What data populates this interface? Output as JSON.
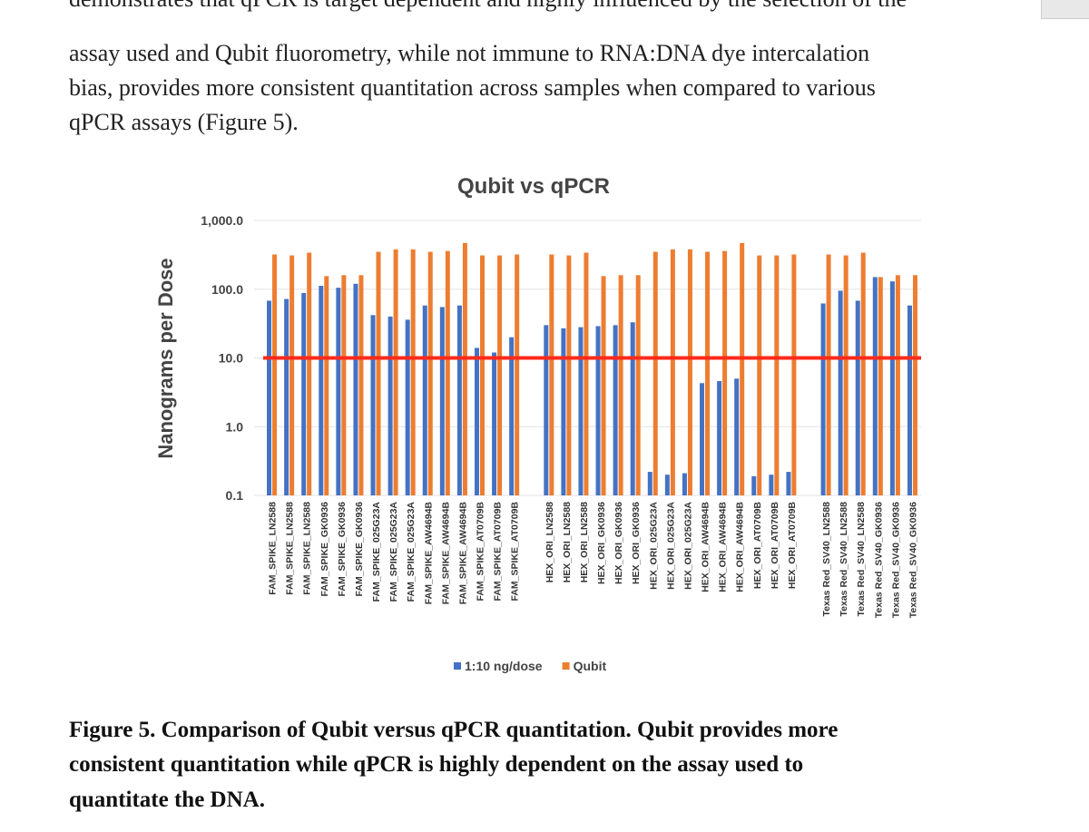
{
  "paragraph": [
    "demonstrates that qPCR is target dependent and highly influenced by the selection of the",
    "assay used and Qubit fluorometry, while not immune to RNA:DNA dye intercalation",
    "bias, provides more consistent quantitation across samples when compared to various",
    "qPCR assays (Figure 5)."
  ],
  "chart_data": {
    "type": "bar",
    "title": "Qubit vs qPCR",
    "y_label": "Nanograms per Dose",
    "log_scale": true,
    "grid": true,
    "legend": "bottom",
    "ylim": [
      0.1,
      1000
    ],
    "yticks": [
      0.1,
      {
        "value": 1,
        "label": "1.0"
      },
      {
        "value": 10,
        "label": "10.0"
      },
      {
        "value": 100,
        "label": "100.0"
      },
      {
        "value": 1000,
        "label": "1,000.0"
      }
    ],
    "reference_line": {
      "value": 10,
      "color": "#ff2a1a"
    },
    "categories": [
      "FAM_SPIKE_LN2588",
      "FAM_SPIKE_LN2588",
      "FAM_SPIKE_LN2588",
      "FAM_SPIKE_GK0936",
      "FAM_SPIKE_GK0936",
      "FAM_SPIKE_GK0936",
      "FAM_SPIKE_025G23A",
      "FAM_SPIKE_025G23A",
      "FAM_SPIKE_025G23A",
      "FAM_SPIKE_AW4694B",
      "FAM_SPIKE_AW4694B",
      "FAM_SPIKE_AW4694B",
      "FAM_SPIKE_AT0709B",
      "FAM_SPIKE_AT0709B",
      "FAM_SPIKE_AT0709B",
      null,
      "HEX_ORI_LN2588",
      "HEX_ORI_LN2588",
      "HEX_ORI_LN2588",
      "HEX_ORI_GK0936",
      "HEX_ORI_GK0936",
      "HEX_ORI_GK0936",
      "HEX_ORI_025G23A",
      "HEX_ORI_025G23A",
      "HEX_ORI_025G23A",
      "HEX_ORI_AW4694B",
      "HEX_ORI_AW4694B",
      "HEX_ORI_AW4694B",
      "HEX_ORI_AT0709B",
      "HEX_ORI_AT0709B",
      "HEX_ORI_AT0709B",
      null,
      "Texas Red_SV40_LN2588",
      "Texas Red_SV40_LN2588",
      "Texas Red_SV40_LN2588",
      "Texas Red_SV40_GK0936",
      "Texas Red_SV40_GK0936",
      "Texas Red_SV40_GK0936"
    ],
    "series": [
      {
        "name": "1:10 ng/dose",
        "color": "#4472c4",
        "values": [
          68,
          72,
          88,
          112,
          105,
          120,
          42,
          40,
          36,
          58,
          55,
          58,
          14,
          12,
          20,
          null,
          30,
          27,
          28,
          29,
          30,
          33,
          0.22,
          0.2,
          0.21,
          4.3,
          4.6,
          5,
          0.19,
          0.2,
          0.22,
          null,
          62,
          95,
          68,
          150,
          130,
          58
        ]
      },
      {
        "name": "Qubit",
        "color": "#ed7d31",
        "values": [
          320,
          310,
          340,
          155,
          160,
          160,
          350,
          380,
          380,
          350,
          360,
          470,
          310,
          310,
          320,
          null,
          320,
          310,
          340,
          155,
          160,
          160,
          350,
          380,
          380,
          350,
          360,
          470,
          310,
          310,
          320,
          null,
          320,
          310,
          340,
          150,
          160,
          160
        ]
      }
    ]
  },
  "caption": [
    "Figure 5. Comparison of Qubit versus qPCR quantitation. Qubit provides more",
    "consistent quantitation while qPCR is highly dependent on the assay used to",
    "quantitate the DNA."
  ]
}
